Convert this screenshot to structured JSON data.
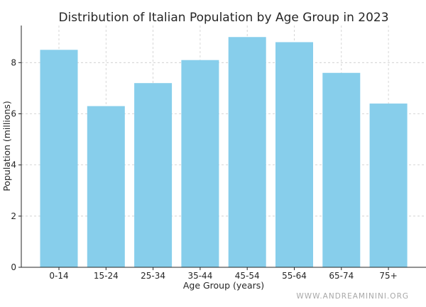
{
  "chart_data": {
    "type": "bar",
    "title": "Distribution of Italian Population by Age Group in 2023",
    "xlabel": "Age Group (years)",
    "ylabel": "Population (millions)",
    "categories": [
      "0-14",
      "15-24",
      "25-34",
      "35-44",
      "45-54",
      "55-64",
      "65-74",
      "75+"
    ],
    "values": [
      8.5,
      6.3,
      7.2,
      8.1,
      9.0,
      8.8,
      7.6,
      6.4
    ],
    "ylim": [
      0,
      9.45
    ],
    "yticks": [
      0,
      2,
      4,
      6,
      8
    ],
    "grid": true,
    "bar_color": "#87CEEB"
  },
  "watermark": "WWW.ANDREAMININI.ORG"
}
